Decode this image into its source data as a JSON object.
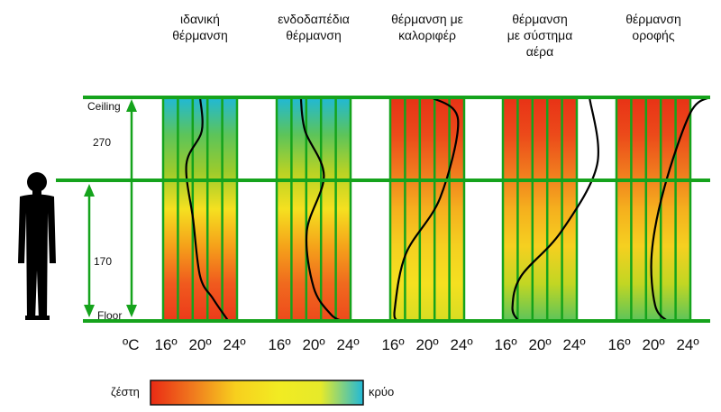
{
  "labels": {
    "ceiling": "Ceiling",
    "floor": "Floor",
    "height_upper": "270",
    "height_lower": "170",
    "unit": "ºC"
  },
  "ticks": [
    "16º",
    "20º",
    "24º"
  ],
  "columns": [
    {
      "title_lines": [
        "ιδανική",
        "θέρμανση"
      ],
      "gradient": [
        "#20b8d8",
        "#5cc45a",
        "#9ccb2c",
        "#f5e020",
        "#f5a01a",
        "#f05a1e",
        "#ec3a1a"
      ],
      "curve": [
        [
          20,
          0
        ],
        [
          20.2,
          0.15
        ],
        [
          18.4,
          0.3
        ],
        [
          19.2,
          0.55
        ],
        [
          20,
          0.8
        ],
        [
          21.5,
          0.9
        ],
        [
          23.3,
          1
        ]
      ]
    },
    {
      "title_lines": [
        "ενδοδαπέδια",
        "θέρμανση"
      ],
      "gradient": [
        "#20b8d8",
        "#5cc45a",
        "#b8d225",
        "#f5e020",
        "#f5a31a",
        "#f06a1e",
        "#ee4a1c"
      ],
      "curve": [
        [
          18.5,
          0
        ],
        [
          19,
          0.15
        ],
        [
          21.2,
          0.35
        ],
        [
          19.2,
          0.6
        ],
        [
          20,
          0.85
        ],
        [
          22,
          0.97
        ],
        [
          23.3,
          1
        ]
      ]
    },
    {
      "title_lines": [
        "θέρμανση με",
        "καλοριφέρ"
      ],
      "gradient": [
        "#e83216",
        "#ec4a1a",
        "#f07a1e",
        "#f5b01e",
        "#f5d020",
        "#f5e020",
        "#d8dd22"
      ],
      "curve": [
        [
          20.5,
          0
        ],
        [
          23.6,
          0.1
        ],
        [
          21.5,
          0.45
        ],
        [
          17.5,
          0.7
        ],
        [
          16.2,
          0.95
        ],
        [
          16.5,
          1
        ]
      ]
    },
    {
      "title_lines": [
        "θέρμανση",
        "με σύστημα",
        "αέρα"
      ],
      "gradient": [
        "#e83216",
        "#ec4a1a",
        "#f07a1e",
        "#f5b01e",
        "#f5d020",
        "#c2d623",
        "#5cc45a"
      ],
      "curve": [
        [
          25.8,
          0
        ],
        [
          26.7,
          0.3
        ],
        [
          22.5,
          0.6
        ],
        [
          17.8,
          0.8
        ],
        [
          16.8,
          0.94
        ],
        [
          17.5,
          1
        ]
      ]
    },
    {
      "title_lines": [
        "θέρμανση",
        "οροφής"
      ],
      "gradient": [
        "#e83216",
        "#ec4a1a",
        "#f07a1e",
        "#f5b01e",
        "#f5d020",
        "#c2d623",
        "#5cc45a"
      ],
      "curve": [
        [
          26.5,
          0
        ],
        [
          24.3,
          0.07
        ],
        [
          21.3,
          0.4
        ],
        [
          19.8,
          0.7
        ],
        [
          20.2,
          0.93
        ],
        [
          21.6,
          1
        ]
      ]
    }
  ],
  "legend": {
    "hot_label": "ζέστη",
    "cold_label": "κρύο",
    "gradient": [
      "#ea2a14",
      "#f07a1e",
      "#f7cf1e",
      "#f2eb22",
      "#e6ea2a",
      "#20b8d8"
    ]
  },
  "colors": {
    "guide": "#15a31c",
    "curve": "#000000",
    "silhouette": "#000000"
  }
}
